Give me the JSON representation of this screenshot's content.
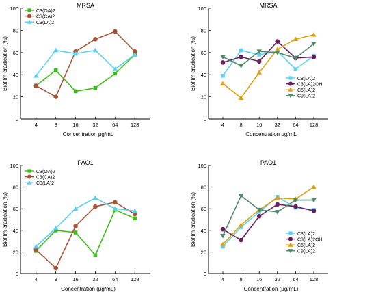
{
  "chart_data": [
    {
      "type": "line",
      "title": "MRSA",
      "xlabel": "Concentration μg/mL",
      "ylabel": "Biofilm eradication (%)",
      "categories": [
        "4",
        "8",
        "16",
        "32",
        "64",
        "128"
      ],
      "ylim": [
        0,
        100
      ],
      "yticks": [
        0,
        20,
        40,
        60,
        80,
        100
      ],
      "legend": "top-left",
      "series": [
        {
          "name": "C3(OA)2",
          "color": "#3dbd1a",
          "marker": "square",
          "values": [
            30,
            44,
            25,
            28,
            41,
            58
          ]
        },
        {
          "name": "C3(CA)2",
          "color": "#a8553a",
          "marker": "circle",
          "values": [
            30,
            20,
            61,
            72,
            79,
            61
          ]
        },
        {
          "name": "C3(LA)2",
          "color": "#5ccff2",
          "marker": "triangle-up",
          "values": [
            39,
            62,
            59,
            62,
            45,
            58
          ]
        }
      ]
    },
    {
      "type": "line",
      "title": "MRSA",
      "xlabel": "Concentration μg/mL",
      "ylabel": "Biofilm eradication (%)",
      "categories": [
        "4",
        "8",
        "16",
        "32",
        "64",
        "128"
      ],
      "ylim": [
        0,
        100
      ],
      "yticks": [
        0,
        20,
        40,
        60,
        80,
        100
      ],
      "legend": "bottom-right",
      "series": [
        {
          "name": "C3(LA)2",
          "color": "#5ccff2",
          "marker": "square",
          "values": [
            39,
            62,
            58,
            61,
            45,
            57
          ]
        },
        {
          "name": "C3(LA)2OH",
          "color": "#6a1f5e",
          "marker": "circle",
          "values": [
            51,
            56,
            52,
            70,
            55,
            56
          ]
        },
        {
          "name": "C6(LA)2",
          "color": "#dda010",
          "marker": "triangle-up",
          "values": [
            32,
            19,
            42,
            63,
            72,
            76
          ]
        },
        {
          "name": "C9(LA)2",
          "color": "#4f8a6a",
          "marker": "triangle-down",
          "values": [
            56,
            48,
            61,
            60,
            55,
            68
          ]
        }
      ]
    },
    {
      "type": "line",
      "title": "PAO1",
      "xlabel": "Concentration (μg/mL)",
      "ylabel": "Biofilm eradication (%)",
      "categories": [
        "4",
        "8",
        "16",
        "32",
        "64",
        "128"
      ],
      "ylim": [
        0,
        100
      ],
      "yticks": [
        0,
        20,
        40,
        60,
        80,
        100
      ],
      "legend": "top-left",
      "series": [
        {
          "name": "C3(OA)2",
          "color": "#3dbd1a",
          "marker": "square",
          "values": [
            21,
            40,
            38,
            17,
            59,
            51
          ]
        },
        {
          "name": "C3(CA)2",
          "color": "#a8553a",
          "marker": "circle",
          "values": [
            22,
            5,
            44,
            62,
            66,
            55
          ]
        },
        {
          "name": "C3(LA)2",
          "color": "#5ccff2",
          "marker": "triangle-up",
          "values": [
            25,
            42,
            60,
            70,
            60,
            58
          ]
        }
      ]
    },
    {
      "type": "line",
      "title": "PAO1",
      "xlabel": "Concentration (μg/mL)",
      "ylabel": "Biofilm eradication (%)",
      "categories": [
        "4",
        "8",
        "16",
        "32",
        "64",
        "128"
      ],
      "ylim": [
        0,
        100
      ],
      "yticks": [
        0,
        20,
        40,
        60,
        80,
        100
      ],
      "legend": "bottom-right",
      "series": [
        {
          "name": "C3(LA)2",
          "color": "#5ccff2",
          "marker": "square",
          "values": [
            25,
            43,
            57,
            71,
            61,
            59
          ]
        },
        {
          "name": "C3(LA)2OH",
          "color": "#6a1f5e",
          "marker": "circle",
          "values": [
            41,
            31,
            53,
            64,
            62,
            58
          ]
        },
        {
          "name": "C6(LA)2",
          "color": "#dda010",
          "marker": "triangle-up",
          "values": [
            27,
            45,
            59,
            70,
            69,
            80
          ]
        },
        {
          "name": "C9(LA)2",
          "color": "#4f8a6a",
          "marker": "triangle-down",
          "values": [
            35,
            72,
            59,
            57,
            68,
            68
          ]
        }
      ]
    }
  ]
}
